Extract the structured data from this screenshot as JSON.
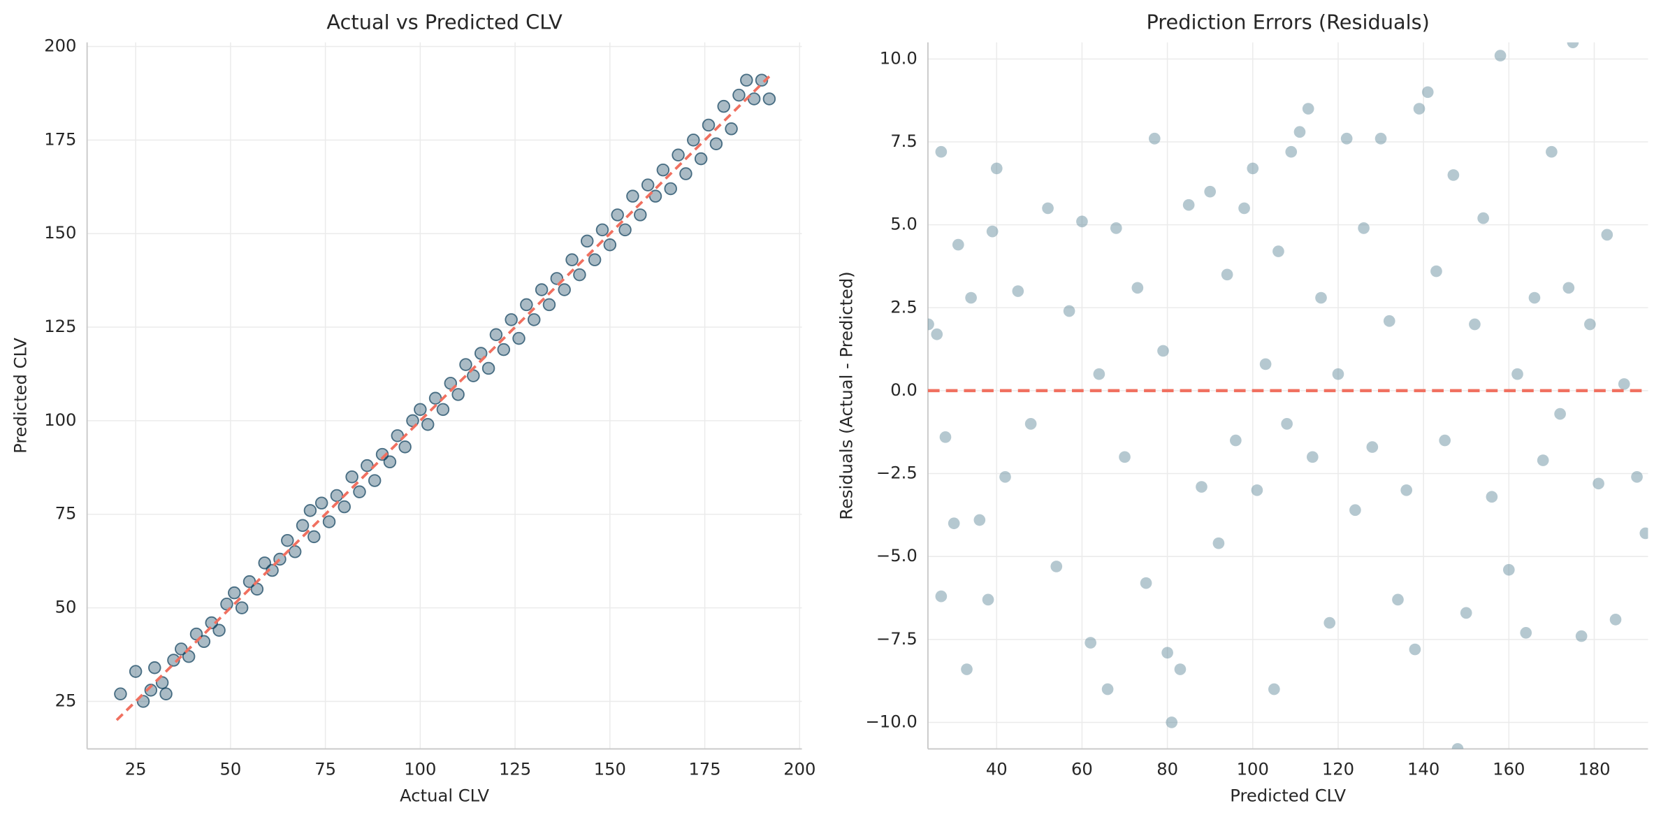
{
  "chart_data": [
    {
      "type": "scatter",
      "title": "Actual vs Predicted CLV",
      "x_label": "Actual CLV",
      "y_label": "Predicted CLV",
      "xlim": [
        12.2,
        200.6
      ],
      "ylim": [
        12.3,
        201.1
      ],
      "xticks": [
        25,
        50,
        75,
        100,
        125,
        150,
        175,
        200
      ],
      "yticks": [
        25,
        50,
        75,
        100,
        125,
        150,
        175,
        200
      ],
      "grid": true,
      "color": "#0b3d5a",
      "reference_line": {
        "x": [
          20,
          192
        ],
        "y": [
          20,
          192
        ],
        "color": "#f07060"
      },
      "series": [
        {
          "x": [
            21,
            25,
            27,
            29,
            30,
            32,
            33,
            35,
            37,
            39,
            41,
            43,
            45,
            47,
            49,
            51,
            53,
            55,
            57,
            59,
            61,
            63,
            65,
            67,
            69,
            71,
            72,
            74,
            76,
            78,
            80,
            82,
            84,
            86,
            88,
            90,
            92,
            94,
            96,
            98,
            100,
            102,
            104,
            106,
            108,
            110,
            112,
            114,
            116,
            118,
            120,
            122,
            124,
            126,
            128,
            130,
            132,
            134,
            136,
            138,
            140,
            142,
            144,
            146,
            148,
            150,
            152,
            154,
            156,
            158,
            160,
            162,
            164,
            166,
            168,
            170,
            172,
            174,
            176,
            178,
            180,
            182,
            184,
            186,
            188,
            190,
            192
          ],
          "values": [
            27,
            33,
            25,
            28,
            34,
            30,
            27,
            36,
            39,
            37,
            43,
            41,
            46,
            44,
            51,
            54,
            50,
            57,
            55,
            62,
            60,
            63,
            68,
            65,
            72,
            76,
            69,
            78,
            73,
            80,
            77,
            85,
            81,
            88,
            84,
            91,
            89,
            96,
            93,
            100,
            103,
            99,
            106,
            103,
            110,
            107,
            115,
            112,
            118,
            114,
            123,
            119,
            127,
            122,
            131,
            127,
            135,
            131,
            138,
            135,
            143,
            139,
            148,
            143,
            151,
            147,
            155,
            151,
            160,
            155,
            163,
            160,
            167,
            162,
            171,
            166,
            175,
            170,
            179,
            174,
            184,
            178,
            187,
            191,
            186,
            191,
            186
          ]
        }
      ]
    },
    {
      "type": "scatter",
      "title": "Prediction Errors (Residuals)",
      "x_label": "Predicted CLV",
      "y_label": "Residuals (Actual - Predicted)",
      "xlim": [
        23.9,
        192.6
      ],
      "ylim": [
        -10.8,
        10.5
      ],
      "xticks": [
        40,
        60,
        80,
        100,
        120,
        140,
        160,
        180
      ],
      "yticks": [
        {
          "value": -10,
          "label": "−10.0"
        },
        {
          "value": -7.5,
          "label": "−7.5"
        },
        {
          "value": -5,
          "label": "−5.0"
        },
        {
          "value": -2.5,
          "label": "−2.5"
        },
        {
          "value": 0,
          "label": "0.0"
        },
        2.5,
        {
          "value": 5,
          "label": "5.0"
        },
        7.5,
        {
          "value": 10,
          "label": "10.0"
        }
      ],
      "grid": true,
      "color": "#5a8597",
      "reference_line": {
        "y": 0,
        "color": "#f07060"
      },
      "series": [
        {
          "x": [
            24,
            26,
            27,
            27,
            28,
            30,
            31,
            33,
            34,
            36,
            38,
            39,
            40,
            42,
            45,
            48,
            52,
            54,
            57,
            60,
            62,
            64,
            66,
            68,
            70,
            73,
            75,
            77,
            79,
            80,
            81,
            83,
            85,
            88,
            90,
            92,
            94,
            96,
            98,
            100,
            101,
            103,
            105,
            106,
            108,
            109,
            111,
            113,
            114,
            116,
            118,
            120,
            122,
            124,
            126,
            128,
            130,
            132,
            134,
            136,
            138,
            139,
            141,
            143,
            145,
            147,
            148,
            150,
            152,
            154,
            156,
            158,
            160,
            162,
            164,
            166,
            168,
            170,
            172,
            174,
            175,
            177,
            179,
            181,
            183,
            185,
            187,
            190,
            192
          ],
          "values": [
            2,
            1.7,
            7.2,
            -6.2,
            -1.4,
            -4,
            4.4,
            -8.4,
            2.8,
            -3.9,
            -6.3,
            4.8,
            6.7,
            -2.6,
            3,
            -1,
            5.5,
            -5.3,
            2.4,
            5.1,
            -7.6,
            0.5,
            -9,
            4.9,
            -2,
            3.1,
            -5.8,
            7.6,
            1.2,
            -7.9,
            -10,
            -8.4,
            5.6,
            -2.9,
            6,
            -4.6,
            3.5,
            -1.5,
            5.5,
            6.7,
            -3,
            0.8,
            -9,
            4.2,
            -1,
            7.2,
            7.8,
            8.5,
            -2,
            2.8,
            -7,
            0.5,
            7.6,
            -3.6,
            4.9,
            -1.7,
            7.6,
            2.1,
            -6.3,
            -3,
            -7.8,
            8.5,
            9,
            3.6,
            -1.5,
            6.5,
            -10.8,
            -6.7,
            2,
            5.2,
            -3.2,
            10.1,
            -5.4,
            0.5,
            -7.3,
            2.8,
            -2.1,
            7.2,
            -0.7,
            3.1,
            10.5,
            -7.4,
            2,
            -2.8,
            4.7,
            -6.9,
            0.2,
            -2.6,
            -4.3
          ]
        }
      ]
    }
  ]
}
